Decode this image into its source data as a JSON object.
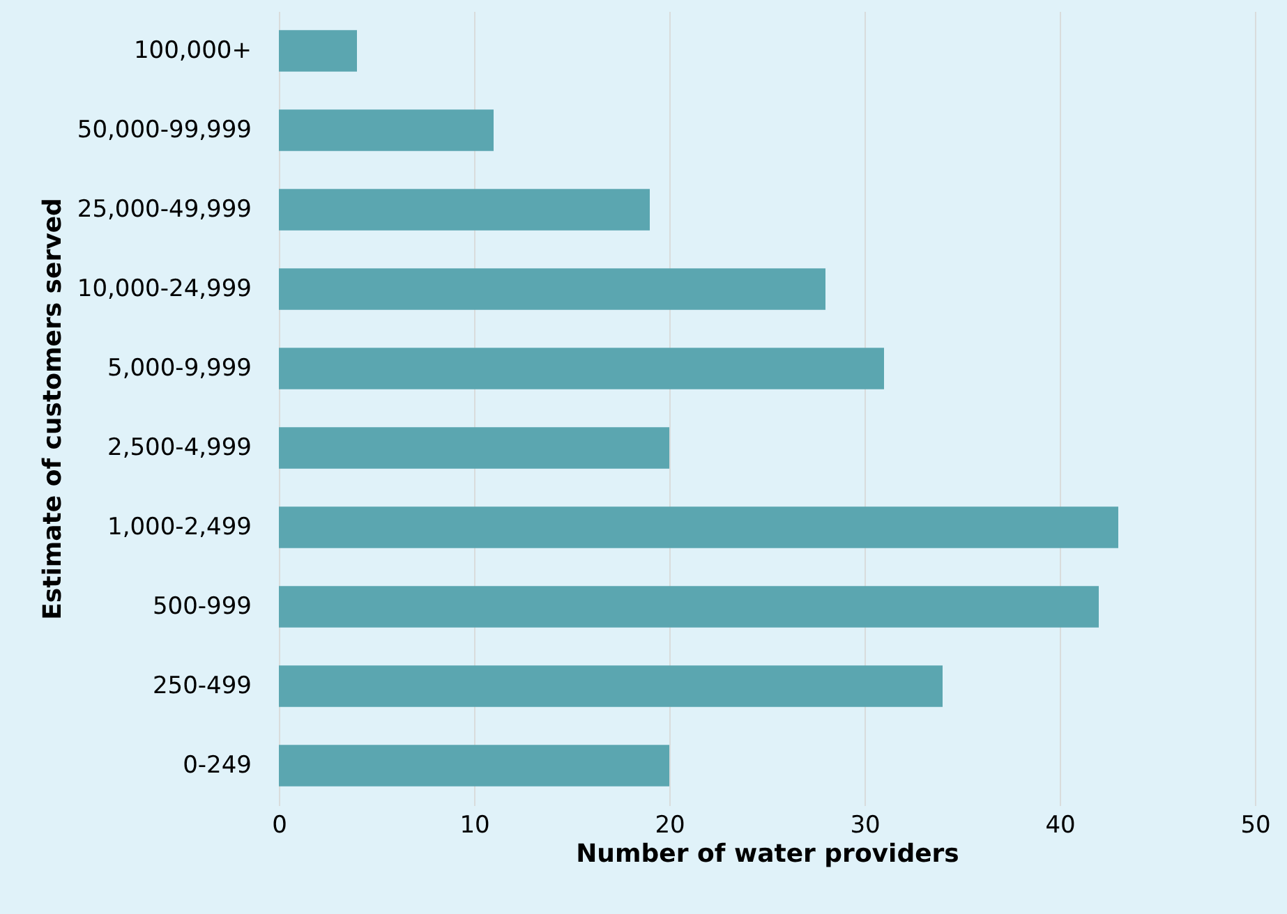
{
  "chart_data": {
    "type": "bar",
    "orientation": "horizontal",
    "xlabel": "Number of water providers",
    "ylabel": "Estimate of customers served",
    "categories": [
      "100,000+",
      "50,000-99,999",
      "25,000-49,999",
      "10,000-24,999",
      "5,000-9,999",
      "2,500-4,999",
      "1,000-2,499",
      "500-999",
      "250-499",
      "0-249"
    ],
    "values": [
      4,
      11,
      19,
      28,
      31,
      20,
      43,
      42,
      34,
      20
    ],
    "color": "#5ba6b0",
    "xlim": [
      0,
      50
    ],
    "xticks": [
      0,
      10,
      20,
      30,
      40,
      50
    ],
    "grid": "x"
  }
}
